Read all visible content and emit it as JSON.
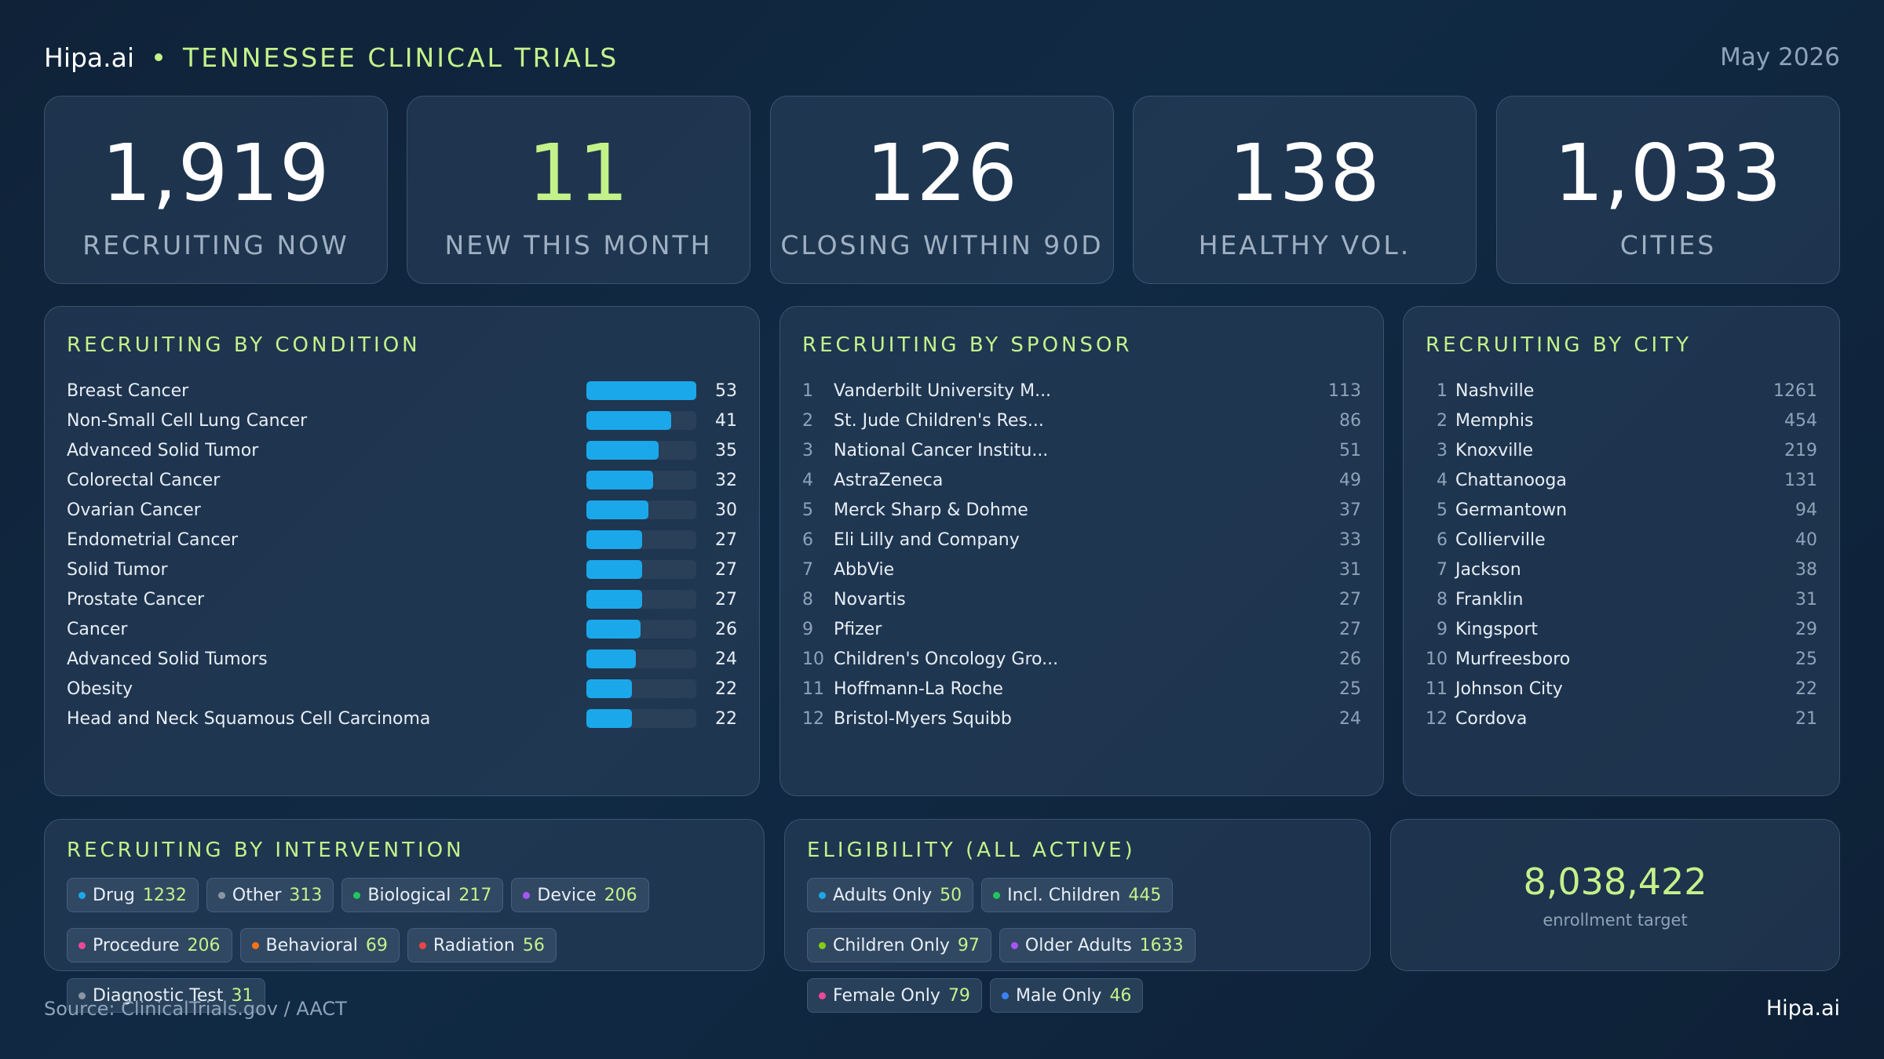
{
  "header": {
    "brand": "Hipa.ai",
    "title": "TENNESSEE CLINICAL TRIALS",
    "date": "May 2026"
  },
  "kpis": [
    {
      "value": "1,919",
      "label": "RECRUITING NOW"
    },
    {
      "value": "11",
      "label": "NEW THIS MONTH"
    },
    {
      "value": "126",
      "label": "CLOSING WITHIN 90D"
    },
    {
      "value": "138",
      "label": "HEALTHY VOL."
    },
    {
      "value": "1,033",
      "label": "CITIES"
    }
  ],
  "condition": {
    "title": "RECRUITING BY CONDITION",
    "max": 53,
    "items": [
      {
        "name": "Breast Cancer",
        "value": 53
      },
      {
        "name": "Non-Small Cell Lung Cancer",
        "value": 41
      },
      {
        "name": "Advanced Solid Tumor",
        "value": 35
      },
      {
        "name": "Colorectal Cancer",
        "value": 32
      },
      {
        "name": "Ovarian Cancer",
        "value": 30
      },
      {
        "name": "Endometrial Cancer",
        "value": 27
      },
      {
        "name": "Solid Tumor",
        "value": 27
      },
      {
        "name": "Prostate Cancer",
        "value": 27
      },
      {
        "name": "Cancer",
        "value": 26
      },
      {
        "name": "Advanced Solid Tumors",
        "value": 24
      },
      {
        "name": "Obesity",
        "value": 22
      },
      {
        "name": "Head and Neck Squamous Cell Carcinoma",
        "value": 22
      }
    ]
  },
  "sponsor": {
    "title": "RECRUITING BY SPONSOR",
    "items": [
      {
        "rank": "1",
        "name": "Vanderbilt University M...",
        "count": "113"
      },
      {
        "rank": "2",
        "name": "St. Jude Children's Res...",
        "count": "86"
      },
      {
        "rank": "3",
        "name": "National Cancer Institu...",
        "count": "51"
      },
      {
        "rank": "4",
        "name": "AstraZeneca",
        "count": "49"
      },
      {
        "rank": "5",
        "name": "Merck Sharp & Dohme",
        "count": "37"
      },
      {
        "rank": "6",
        "name": "Eli Lilly and Company",
        "count": "33"
      },
      {
        "rank": "7",
        "name": "AbbVie",
        "count": "31"
      },
      {
        "rank": "8",
        "name": "Novartis",
        "count": "27"
      },
      {
        "rank": "9",
        "name": "Pfizer",
        "count": "27"
      },
      {
        "rank": "10",
        "name": "Children's Oncology Gro...",
        "count": "26"
      },
      {
        "rank": "11",
        "name": "Hoffmann-La Roche",
        "count": "25"
      },
      {
        "rank": "12",
        "name": "Bristol-Myers Squibb",
        "count": "24"
      }
    ]
  },
  "city": {
    "title": "RECRUITING BY CITY",
    "items": [
      {
        "rank": "1",
        "name": "Nashville",
        "count": "1261"
      },
      {
        "rank": "2",
        "name": "Memphis",
        "count": "454"
      },
      {
        "rank": "3",
        "name": "Knoxville",
        "count": "219"
      },
      {
        "rank": "4",
        "name": "Chattanooga",
        "count": "131"
      },
      {
        "rank": "5",
        "name": "Germantown",
        "count": "94"
      },
      {
        "rank": "6",
        "name": "Collierville",
        "count": "40"
      },
      {
        "rank": "7",
        "name": "Jackson",
        "count": "38"
      },
      {
        "rank": "8",
        "name": "Franklin",
        "count": "31"
      },
      {
        "rank": "9",
        "name": "Kingsport",
        "count": "29"
      },
      {
        "rank": "10",
        "name": "Murfreesboro",
        "count": "25"
      },
      {
        "rank": "11",
        "name": "Johnson City",
        "count": "22"
      },
      {
        "rank": "12",
        "name": "Cordova",
        "count": "21"
      }
    ]
  },
  "intervention": {
    "title": "RECRUITING BY INTERVENTION",
    "items": [
      {
        "label": "Drug",
        "value": "1232",
        "color": "#1aa8ea"
      },
      {
        "label": "Other",
        "value": "313",
        "color": "#8a96a3"
      },
      {
        "label": "Biological",
        "value": "217",
        "color": "#22c55e"
      },
      {
        "label": "Device",
        "value": "206",
        "color": "#a855f7"
      },
      {
        "label": "Procedure",
        "value": "206",
        "color": "#ec4899"
      },
      {
        "label": "Behavioral",
        "value": "69",
        "color": "#f97316"
      },
      {
        "label": "Radiation",
        "value": "56",
        "color": "#ef4444"
      },
      {
        "label": "Diagnostic Test",
        "value": "31",
        "color": "#8a96a3"
      }
    ]
  },
  "eligibility": {
    "title": "ELIGIBILITY (ALL ACTIVE)",
    "items": [
      {
        "label": "Adults Only",
        "value": "50",
        "color": "#1aa8ea"
      },
      {
        "label": "Incl. Children",
        "value": "445",
        "color": "#22c55e"
      },
      {
        "label": "Children Only",
        "value": "97",
        "color": "#84cc16"
      },
      {
        "label": "Older Adults",
        "value": "1633",
        "color": "#a855f7"
      },
      {
        "label": "Female Only",
        "value": "79",
        "color": "#ec4899"
      },
      {
        "label": "Male Only",
        "value": "46",
        "color": "#3b82f6"
      }
    ]
  },
  "enrollment": {
    "value": "8,038,422",
    "label": "enrollment target"
  },
  "footer": {
    "source": "Source: ClinicalTrials.gov / AACT",
    "brand": "Hipa.ai"
  }
}
